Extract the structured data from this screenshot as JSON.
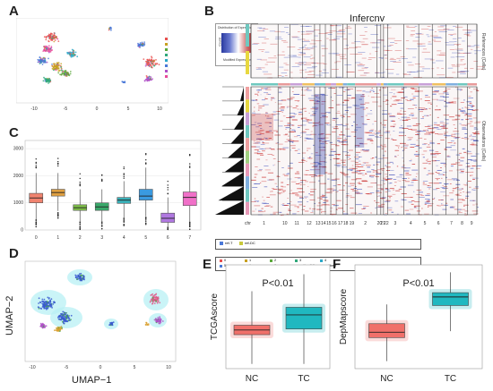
{
  "panels": {
    "A": "A",
    "B": "B",
    "C": "C",
    "D": "D",
    "E": "E",
    "F": "F"
  },
  "panel_a": {
    "x_ticks": [
      "-10",
      "-5",
      "0",
      "5",
      "10"
    ],
    "legend": [
      "0",
      "1",
      "2",
      "3",
      "4",
      "5",
      "6",
      "7"
    ],
    "colors": [
      "#e8504f",
      "#c8a020",
      "#5aa83a",
      "#2fa87a",
      "#2aa8c8",
      "#4a78d8",
      "#b050c8",
      "#e84a9a"
    ]
  },
  "panel_b": {
    "title": "Infercnv",
    "color_key_title": "Distribution of Expression",
    "color_key_x": "Modified Expression",
    "color_key_y": "Count",
    "ref_label": "References (Cells)",
    "obs_label": "Observations (Cells)",
    "chr_label": "chr",
    "chromosomes": [
      "1",
      "10",
      "11",
      "12",
      "13",
      "14",
      "15",
      "16",
      "17",
      "18",
      "19",
      "2",
      "20",
      "21",
      "22",
      "3",
      "4",
      "5",
      "6",
      "7",
      "8",
      "9"
    ],
    "legend1": [
      "ref-T",
      "ref-DC"
    ],
    "legend2": [
      "0",
      "1",
      "2",
      "3",
      "4",
      "5",
      "6",
      "7",
      "epithe-DC",
      "epithe-T"
    ]
  },
  "panel_c": {
    "y_ticks": [
      "0",
      "1000",
      "2000",
      "3000"
    ],
    "categories": [
      "0",
      "1",
      "2",
      "3",
      "4",
      "5",
      "6",
      "7"
    ]
  },
  "chart_data": [
    {
      "type": "box",
      "panel": "C",
      "categories": [
        "0",
        "1",
        "2",
        "3",
        "4",
        "5",
        "6",
        "7"
      ],
      "series": [
        {
          "values": [
            {
              "q1": 1000,
              "median": 1180,
              "q3": 1350,
              "low": 400,
              "high": 2100
            },
            {
              "q1": 1250,
              "median": 1380,
              "q3": 1500,
              "low": 700,
              "high": 2100
            },
            {
              "q1": 720,
              "median": 820,
              "q3": 930,
              "low": 300,
              "high": 1500
            },
            {
              "q1": 720,
              "median": 850,
              "q3": 1000,
              "low": 300,
              "high": 1500
            },
            {
              "q1": 980,
              "median": 1100,
              "q3": 1200,
              "low": 450,
              "high": 1800
            },
            {
              "q1": 1100,
              "median": 1250,
              "q3": 1500,
              "low": 500,
              "high": 2300
            },
            {
              "q1": 280,
              "median": 430,
              "q3": 620,
              "low": 100,
              "high": 1200
            },
            {
              "q1": 900,
              "median": 1200,
              "q3": 1400,
              "low": 300,
              "high": 2200
            }
          ]
        }
      ],
      "colors": [
        "#f0836f",
        "#e0a040",
        "#7fbf4a",
        "#3aa86a",
        "#3ab0b8",
        "#3a9ae0",
        "#b078e0",
        "#f070c8"
      ],
      "ylim": [
        0,
        3300
      ]
    },
    {
      "type": "box",
      "panel": "E",
      "categories": [
        "NC",
        "TC"
      ],
      "ylabel": "TCGAscore",
      "annotation": "P<0.01",
      "series": [
        {
          "values": [
            {
              "q1": 0.26,
              "median": 0.31,
              "q3": 0.36,
              "low": -0.05,
              "high": 0.72
            },
            {
              "q1": 0.32,
              "median": 0.47,
              "q3": 0.55,
              "low": -0.05,
              "high": 0.9
            }
          ]
        }
      ],
      "colors": [
        "#f0706a",
        "#20b8c0"
      ],
      "ylim": [
        -0.1,
        1.0
      ]
    },
    {
      "type": "box",
      "panel": "F",
      "categories": [
        "NC",
        "TC"
      ],
      "ylabel": "DepMapscore",
      "annotation": "P<0.01",
      "series": [
        {
          "values": [
            {
              "q1": 0.34,
              "median": 0.39,
              "q3": 0.47,
              "low": 0.12,
              "high": 0.65
            },
            {
              "q1": 0.64,
              "median": 0.72,
              "q3": 0.76,
              "low": 0.4,
              "high": 0.95
            }
          ]
        }
      ],
      "colors": [
        "#f0706a",
        "#20b8c0"
      ],
      "ylim": [
        0.05,
        1.02
      ]
    }
  ],
  "panel_d": {
    "xlabel": "UMAP−1",
    "ylabel": "UMAP−2",
    "x_ticks": [
      "-10",
      "-5",
      "0",
      "5",
      "10"
    ]
  }
}
